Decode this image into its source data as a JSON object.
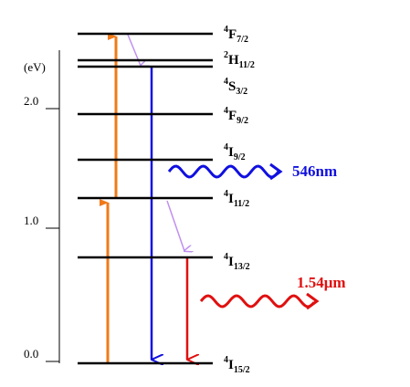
{
  "axis": {
    "unit": "(eV)",
    "ticks": [
      "0.0",
      "1.0",
      "2.0"
    ]
  },
  "levels": [
    {
      "sup": "4",
      "term": "F",
      "sub": "7/2"
    },
    {
      "sup": "2",
      "term": "H",
      "sub": "11/2"
    },
    {
      "sup": "4",
      "term": "S",
      "sub": "3/2"
    },
    {
      "sup": "4",
      "term": "F",
      "sub": "9/2"
    },
    {
      "sup": "4",
      "term": "I",
      "sub": "9/2"
    },
    {
      "sup": "4",
      "term": "I",
      "sub": "11/2"
    },
    {
      "sup": "4",
      "term": "I",
      "sub": "13/2"
    },
    {
      "sup": "4",
      "term": "I",
      "sub": "15/2"
    }
  ],
  "emissions": [
    {
      "label": "546nm",
      "color": "#1010e0"
    },
    {
      "label": "1.54μm",
      "color": "#e01010"
    }
  ]
}
